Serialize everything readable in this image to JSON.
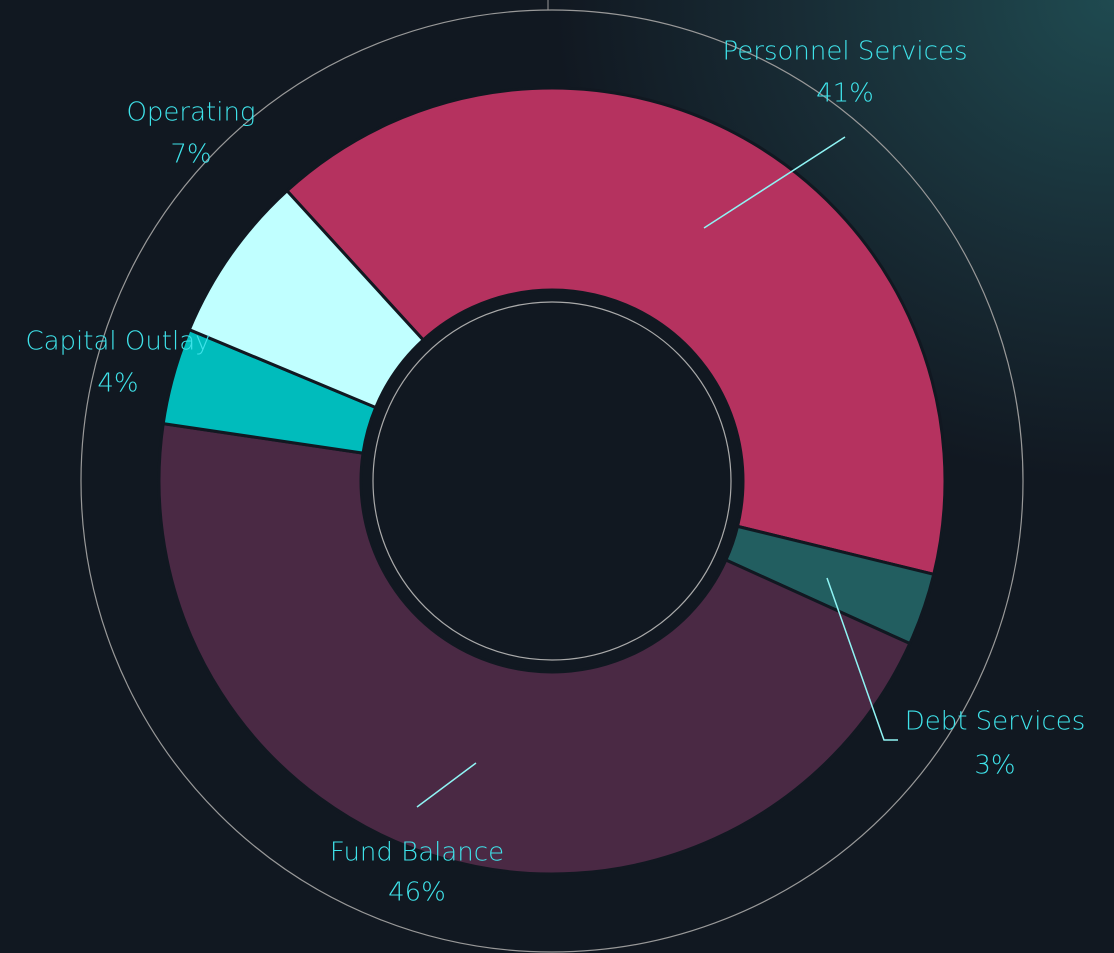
{
  "chart_data": {
    "type": "donut",
    "categories": [
      "Personnel Services",
      "Debt Services",
      "Fund Balance",
      "Capital Outlay",
      "Operating"
    ],
    "values": [
      41,
      3,
      46,
      4,
      7
    ],
    "value_labels": [
      "41%",
      "3%",
      "46%",
      "4%",
      "7%"
    ],
    "colors": [
      "#b5325f",
      "#225e60",
      "#4a2944",
      "#00bcbc",
      "#c0ffff"
    ]
  }
}
